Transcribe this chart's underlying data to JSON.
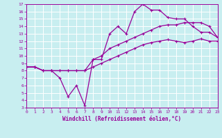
{
  "bg_color": "#c8eef0",
  "grid_color": "#ffffff",
  "line_color": "#990099",
  "xlabel": "Windchill (Refroidissement éolien,°C)",
  "xlabel_color": "#990099",
  "tick_color": "#990099",
  "xmin": 0,
  "xmax": 23,
  "ymin": 3,
  "ymax": 17,
  "xticks": [
    0,
    1,
    2,
    3,
    4,
    5,
    6,
    7,
    8,
    9,
    10,
    11,
    12,
    13,
    14,
    15,
    16,
    17,
    18,
    19,
    20,
    21,
    22,
    23
  ],
  "yticks": [
    3,
    4,
    5,
    6,
    7,
    8,
    9,
    10,
    11,
    12,
    13,
    14,
    15,
    16,
    17
  ],
  "line1_x": [
    0,
    1,
    2,
    3,
    4,
    5,
    6,
    7,
    8,
    9,
    10,
    11,
    12,
    13,
    14,
    15,
    16,
    17,
    18,
    19,
    20,
    21,
    22,
    23
  ],
  "line1_y": [
    8.5,
    8.5,
    8.0,
    8.0,
    7.0,
    4.5,
    6.0,
    3.3,
    9.5,
    9.5,
    13.0,
    14.0,
    13.0,
    16.0,
    17.0,
    16.2,
    16.2,
    15.2,
    15.0,
    15.0,
    14.0,
    13.2,
    13.2,
    12.5
  ],
  "line2_x": [
    0,
    1,
    2,
    3,
    4,
    5,
    6,
    7,
    8,
    9,
    10,
    11,
    12,
    13,
    14,
    15,
    16,
    17,
    18,
    19,
    20,
    21,
    22,
    23
  ],
  "line2_y": [
    8.5,
    8.5,
    8.0,
    8.0,
    8.0,
    8.0,
    8.0,
    8.0,
    9.5,
    10.0,
    11.0,
    11.5,
    12.0,
    12.5,
    13.0,
    13.5,
    14.0,
    14.2,
    14.2,
    14.5,
    14.5,
    14.5,
    14.0,
    12.5
  ],
  "line3_x": [
    0,
    1,
    2,
    3,
    4,
    5,
    6,
    7,
    8,
    9,
    10,
    11,
    12,
    13,
    14,
    15,
    16,
    17,
    18,
    19,
    20,
    21,
    22,
    23
  ],
  "line3_y": [
    8.5,
    8.5,
    8.0,
    8.0,
    8.0,
    8.0,
    8.0,
    8.0,
    8.5,
    9.0,
    9.5,
    10.0,
    10.5,
    11.0,
    11.5,
    11.8,
    12.0,
    12.2,
    12.0,
    11.8,
    12.0,
    12.3,
    12.0,
    12.0
  ]
}
